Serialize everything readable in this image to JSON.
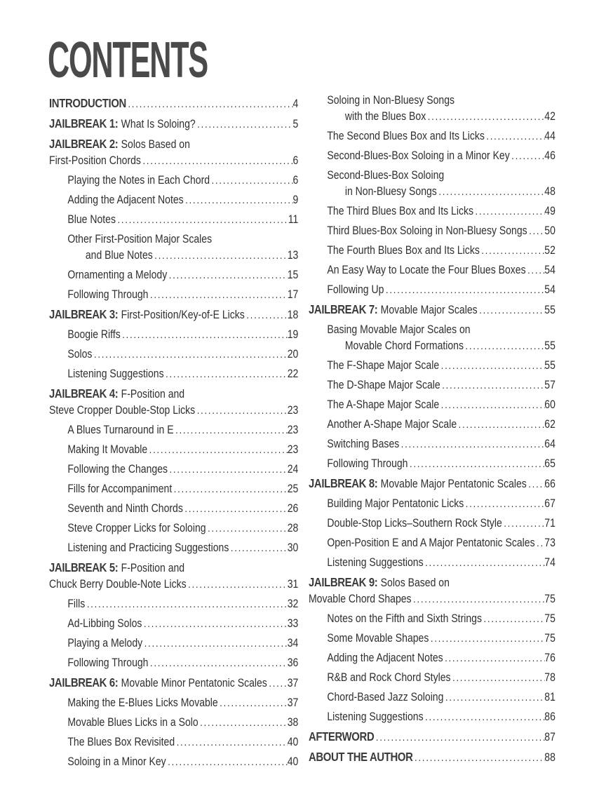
{
  "title": "CONTENTS",
  "colors": {
    "ink": "#2f2f2f",
    "heading": "#3b3b3b",
    "title": "#4a4a4a",
    "background": "#ffffff"
  },
  "columns": {
    "left": [
      {
        "kind": "front",
        "bold": "INTRODUCTION",
        "page": "4"
      },
      {
        "kind": "chapter",
        "bold": "JAILBREAK 1:",
        "text": "What Is Soloing?",
        "page": "5"
      },
      {
        "kind": "chapter",
        "bold": "JAILBREAK 2:",
        "text": "Solos Based on",
        "line2": "First-Position Chords",
        "page": "6"
      },
      {
        "kind": "section",
        "text": "Playing the Notes in Each Chord",
        "page": "6"
      },
      {
        "kind": "section",
        "text": "Adding the Adjacent Notes",
        "page": "9"
      },
      {
        "kind": "section",
        "text": "Blue Notes",
        "page": "11"
      },
      {
        "kind": "section",
        "text": "Other First-Position Major Scales",
        "line2": "and Blue Notes",
        "page": "13"
      },
      {
        "kind": "section",
        "text": "Ornamenting a Melody",
        "page": "15"
      },
      {
        "kind": "section",
        "text": "Following Through",
        "page": "17"
      },
      {
        "kind": "chapter",
        "bold": "JAILBREAK 3:",
        "text": "First-Position/Key-of-E Licks",
        "page": "18"
      },
      {
        "kind": "section",
        "text": "Boogie Riffs",
        "page": "19"
      },
      {
        "kind": "section",
        "text": "Solos",
        "page": "20"
      },
      {
        "kind": "section",
        "text": "Listening Suggestions",
        "page": "22"
      },
      {
        "kind": "chapter",
        "bold": "JAILBREAK 4:",
        "text": "F-Position and",
        "line2": "Steve Cropper Double-Stop Licks",
        "page": "23"
      },
      {
        "kind": "section",
        "text": "A Blues Turnaround in E",
        "page": "23"
      },
      {
        "kind": "section",
        "text": "Making It Movable",
        "page": "23"
      },
      {
        "kind": "section",
        "text": "Following the Changes",
        "page": "24"
      },
      {
        "kind": "section",
        "text": "Fills for Accompaniment",
        "page": "25"
      },
      {
        "kind": "section",
        "text": "Seventh and Ninth Chords",
        "page": "26"
      },
      {
        "kind": "section",
        "text": "Steve Cropper Licks for Soloing",
        "page": "28"
      },
      {
        "kind": "section",
        "text": "Listening and Practicing Suggestions",
        "page": "30"
      },
      {
        "kind": "chapter",
        "bold": "JAILBREAK 5:",
        "text": "F-Position and",
        "line2": "Chuck Berry Double-Note Licks",
        "page": "31"
      },
      {
        "kind": "section",
        "text": "Fills",
        "page": "32"
      },
      {
        "kind": "section",
        "text": "Ad-Libbing Solos",
        "page": "33"
      },
      {
        "kind": "section",
        "text": "Playing a Melody",
        "page": "34"
      },
      {
        "kind": "section",
        "text": "Following Through",
        "page": "36"
      },
      {
        "kind": "chapter",
        "bold": "JAILBREAK 6:",
        "text": "Movable Minor Pentatonic Scales",
        "page": "37"
      },
      {
        "kind": "section",
        "text": "Making the E-Blues Licks Movable",
        "page": "37"
      },
      {
        "kind": "section",
        "text": "Movable Blues Licks in a Solo",
        "page": "38"
      },
      {
        "kind": "section",
        "text": "The Blues Box Revisited",
        "page": "40"
      },
      {
        "kind": "section",
        "text": "Soloing in a Minor Key",
        "page": "40"
      }
    ],
    "right": [
      {
        "kind": "section",
        "text": "Soloing in Non-Bluesy Songs",
        "line2": "with the Blues Box",
        "page": "42"
      },
      {
        "kind": "section",
        "text": "The Second Blues Box and Its Licks",
        "page": "44"
      },
      {
        "kind": "section",
        "text": "Second-Blues-Box Soloing in a Minor Key",
        "page": "46"
      },
      {
        "kind": "section",
        "text": "Second-Blues-Box Soloing",
        "line2": "in Non-Bluesy Songs",
        "page": "48"
      },
      {
        "kind": "section",
        "text": "The Third Blues Box and Its Licks",
        "page": "49"
      },
      {
        "kind": "section",
        "text": "Third Blues-Box Soloing in Non-Bluesy Songs",
        "page": "50"
      },
      {
        "kind": "section",
        "text": "The Fourth Blues Box and Its Licks",
        "page": "52"
      },
      {
        "kind": "section",
        "text": "An Easy Way to Locate the Four Blues Boxes",
        "page": "54"
      },
      {
        "kind": "section",
        "text": "Following Up",
        "page": "54"
      },
      {
        "kind": "chapter",
        "bold": "JAILBREAK 7:",
        "text": "Movable Major Scales",
        "page": "55"
      },
      {
        "kind": "section",
        "text": "Basing Movable Major Scales on",
        "line2": "Movable Chord Formations",
        "page": "55"
      },
      {
        "kind": "section",
        "text": "The F-Shape Major Scale",
        "page": "55"
      },
      {
        "kind": "section",
        "text": "The D-Shape Major Scale",
        "page": "57"
      },
      {
        "kind": "section",
        "text": "The A-Shape Major Scale",
        "page": "60"
      },
      {
        "kind": "section",
        "text": "Another A-Shape Major Scale",
        "page": "62"
      },
      {
        "kind": "section",
        "text": "Switching Bases",
        "page": "64"
      },
      {
        "kind": "section",
        "text": "Following Through",
        "page": "65"
      },
      {
        "kind": "chapter",
        "bold": "JAILBREAK 8:",
        "text": "Movable Major Pentatonic Scales",
        "page": "66"
      },
      {
        "kind": "section",
        "text": "Building Major Pentatonic Licks",
        "page": "67"
      },
      {
        "kind": "section",
        "text": "Double-Stop Licks–Southern Rock Style",
        "page": "71"
      },
      {
        "kind": "section",
        "text": "Open-Position E and A Major Pentatonic Scales",
        "page": "73"
      },
      {
        "kind": "section",
        "text": "Listening Suggestions",
        "page": "74"
      },
      {
        "kind": "chapter",
        "bold": "JAILBREAK 9:",
        "text": "Solos Based on",
        "line2": "Movable Chord Shapes",
        "page": "75"
      },
      {
        "kind": "section",
        "text": "Notes on the Fifth and Sixth Strings",
        "page": "75"
      },
      {
        "kind": "section",
        "text": "Some Movable Shapes",
        "page": "75"
      },
      {
        "kind": "section",
        "text": "Adding the Adjacent Notes",
        "page": "76"
      },
      {
        "kind": "section",
        "text": "R&B and Rock Chord Styles",
        "page": "78"
      },
      {
        "kind": "section",
        "text": "Chord-Based Jazz Soloing",
        "page": "81"
      },
      {
        "kind": "section",
        "text": "Listening Suggestions",
        "page": "86"
      },
      {
        "kind": "front",
        "bold": "AFTERWORD",
        "page": "87"
      },
      {
        "kind": "front",
        "bold": "ABOUT THE AUTHOR",
        "page": "88"
      }
    ]
  }
}
